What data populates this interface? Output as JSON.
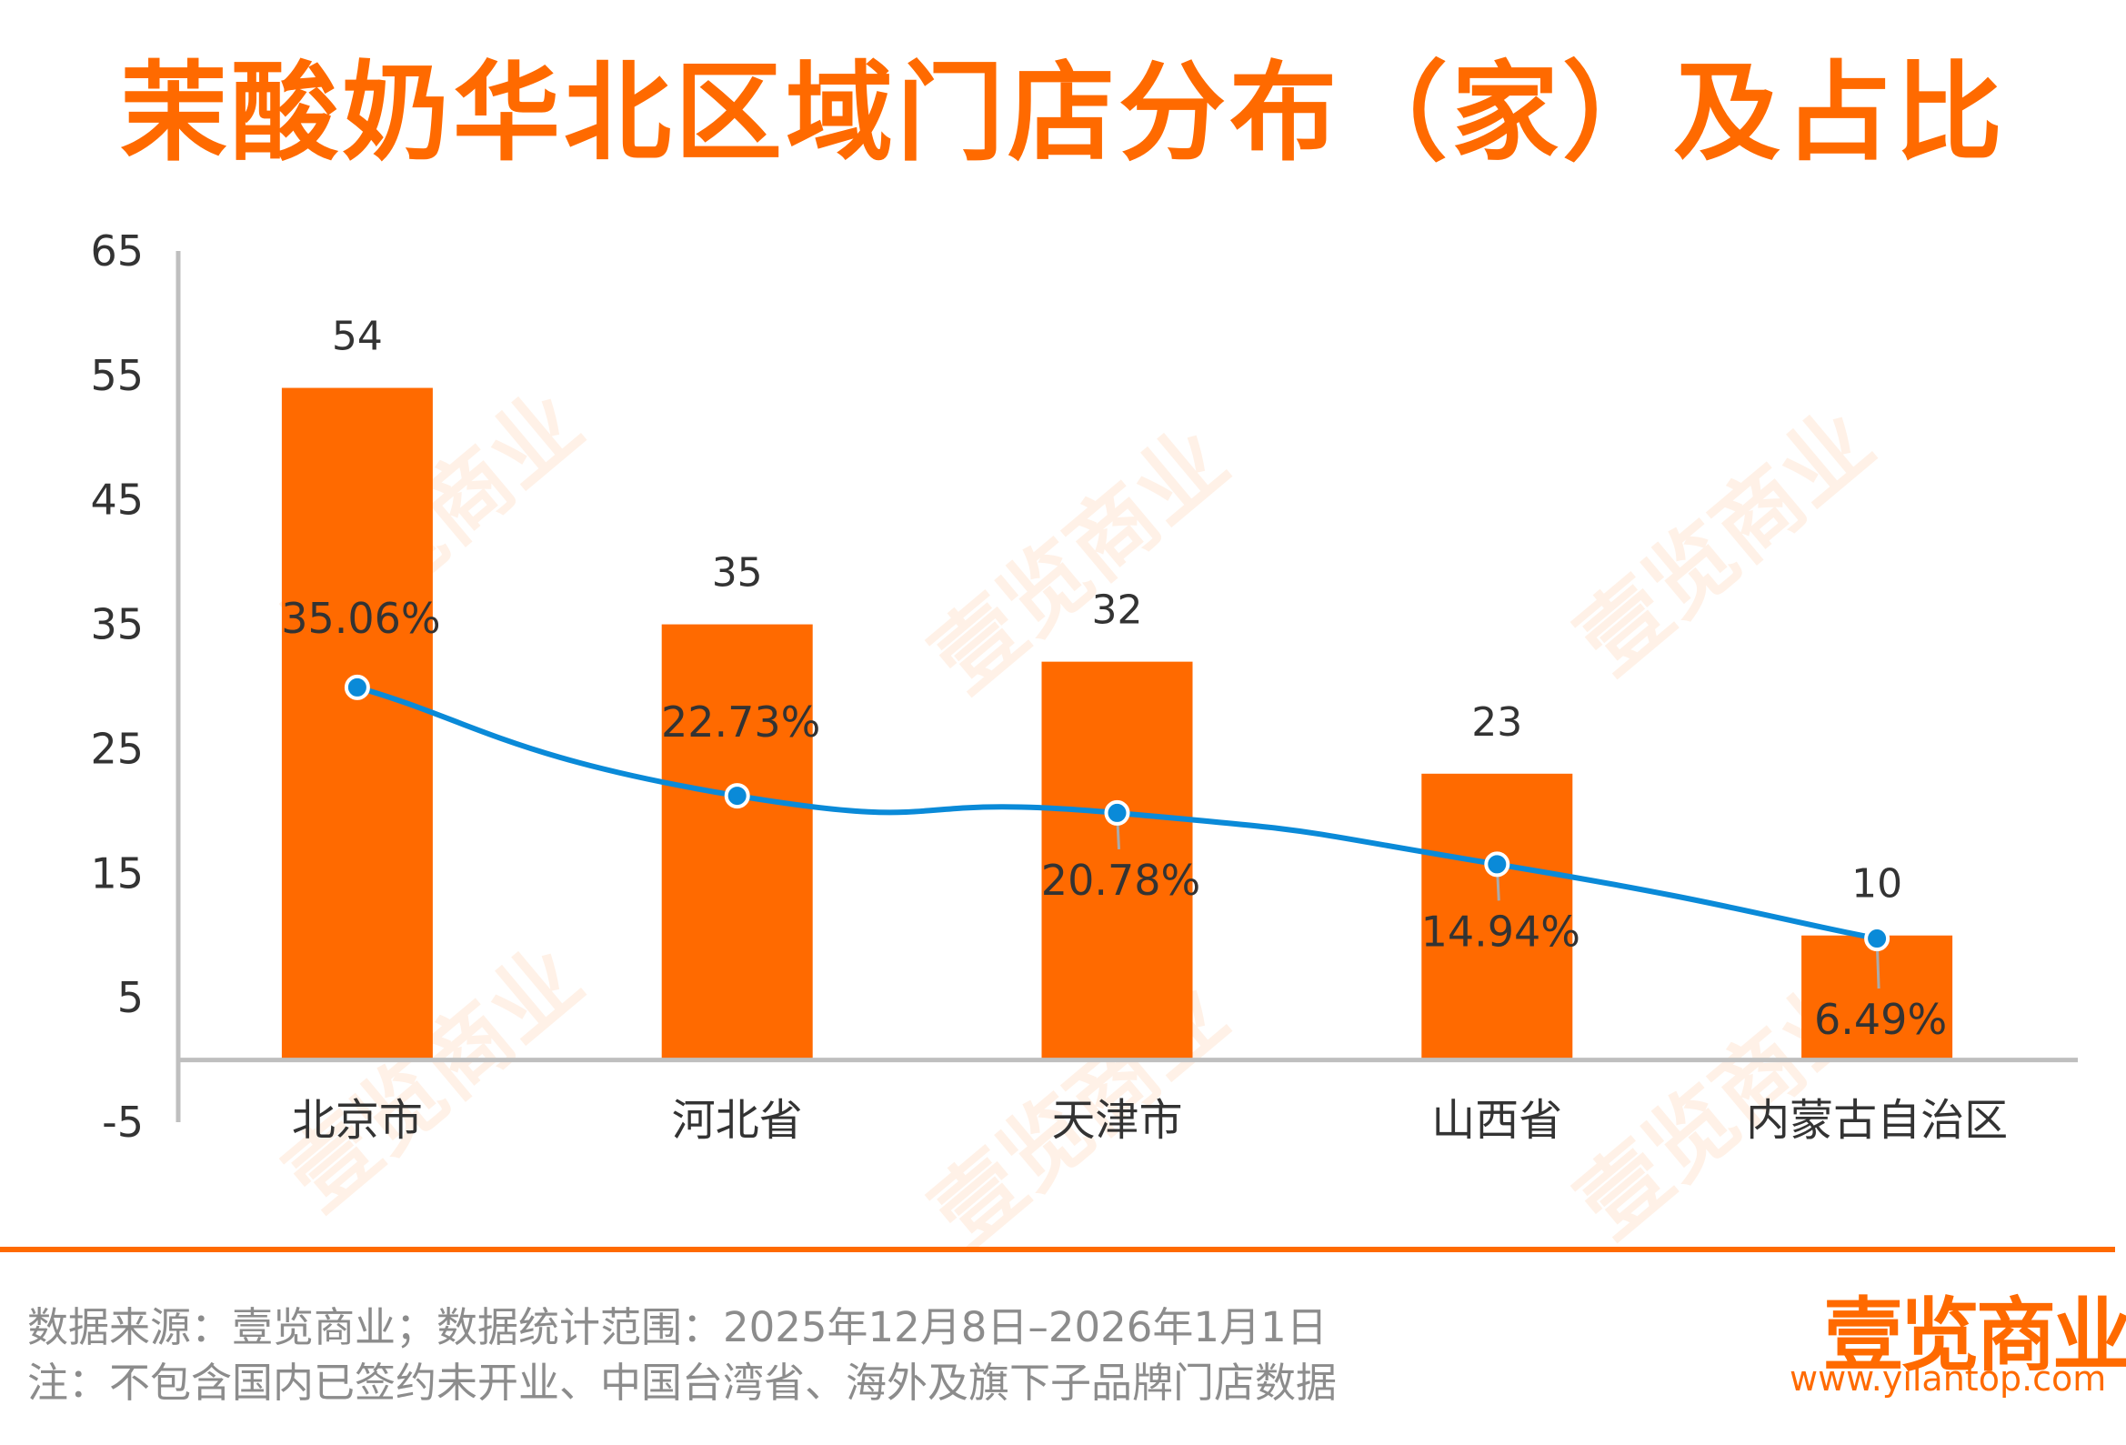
{
  "title": "茉酸奶华北区域门店分布（家）及占比",
  "chart_data": {
    "type": "bar+line",
    "title": "茉酸奶华北区域门店分布（家）及占比",
    "categories": [
      "北京市",
      "河北省",
      "天津市",
      "山西省",
      "内蒙古自治区"
    ],
    "series": [
      {
        "name": "门店数（家）",
        "type": "bar",
        "values": [
          54,
          35,
          32,
          23,
          10
        ],
        "labels": [
          "54",
          "35",
          "32",
          "23",
          "10"
        ],
        "color": "#ff6a00"
      },
      {
        "name": "占比",
        "type": "line",
        "axis": "secondary",
        "values": [
          35.06,
          22.73,
          20.78,
          14.94,
          6.49
        ],
        "labels": [
          "35.06%",
          "22.73%",
          "20.78%",
          "14.94%",
          "6.49%"
        ],
        "color": "#0a8ad8"
      }
    ],
    "ylim": [
      -5,
      65
    ],
    "y2lim": [
      -14.4,
      84.7
    ],
    "yticks": [
      "65",
      "55",
      "45",
      "35",
      "25",
      "15",
      "5",
      "-5"
    ],
    "ytick_values": [
      65,
      55,
      45,
      35,
      25,
      15,
      5,
      -5
    ],
    "grid": false
  },
  "footer": {
    "source": "数据来源：壹览商业；数据统计范围：2025年12月8日–2026年1月1日",
    "note": "注：不包含国内已签约未开业、中国台湾省、海外及旗下子品牌门店数据"
  },
  "logo": {
    "name": "壹览商业",
    "url": "www.yilantop.com"
  },
  "watermark": "壹览商业"
}
